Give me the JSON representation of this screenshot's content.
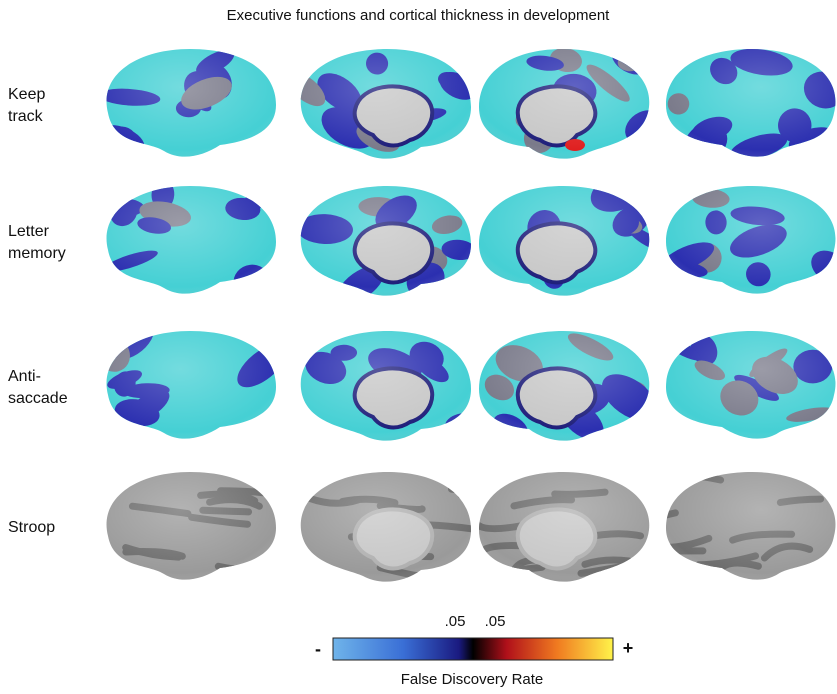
{
  "title": "Executive functions and cortical thickness in development",
  "rows": [
    {
      "label": [
        "Keep",
        "track"
      ]
    },
    {
      "label": [
        "Letter",
        "memory"
      ]
    },
    {
      "label": [
        "Anti-",
        "saccade"
      ]
    },
    {
      "label": [
        "Stroop"
      ]
    }
  ],
  "colorbar": {
    "min_label": "-",
    "max_label": "+",
    "ticks": [
      ".05",
      ".05"
    ],
    "label": "False Discovery Rate"
  }
}
